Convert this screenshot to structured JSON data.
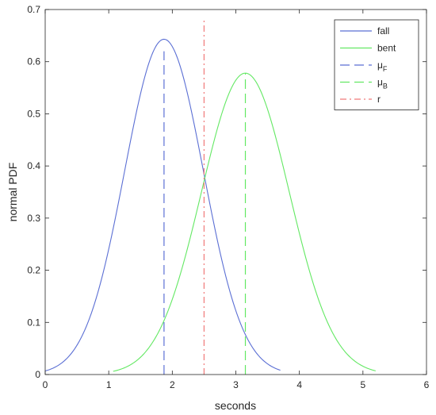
{
  "chart_data": {
    "type": "line",
    "xlabel": "seconds",
    "ylabel": "normal PDF",
    "xlim": [
      0,
      6
    ],
    "ylim": [
      0,
      0.7
    ],
    "xticks": [
      "0",
      "1",
      "2",
      "3",
      "4",
      "5",
      "6"
    ],
    "yticks": [
      "0",
      "0.1",
      "0.2",
      "0.3",
      "0.4",
      "0.5",
      "0.6",
      "0.7"
    ],
    "grid": false,
    "legend_position": "top-right",
    "series": [
      {
        "name": "fall",
        "kind": "gaussian",
        "mean": 1.87,
        "peak": 0.643,
        "x_range": [
          0,
          3.7
        ],
        "color": "#5b6fd4",
        "dash": "solid"
      },
      {
        "name": "bent",
        "kind": "gaussian",
        "mean": 3.15,
        "peak": 0.578,
        "x_range": [
          1.07,
          5.2
        ],
        "color": "#63e863",
        "dash": "solid"
      },
      {
        "name": "μ",
        "subscript": "F",
        "kind": "vline",
        "x": 1.87,
        "y_range": [
          0,
          0.62
        ],
        "color": "#5b6fd4",
        "dash": "dashed"
      },
      {
        "name": "μ",
        "subscript": "B",
        "kind": "vline",
        "x": 3.15,
        "y_range": [
          0,
          0.578
        ],
        "color": "#63e863",
        "dash": "dashed"
      },
      {
        "name": "r",
        "kind": "vline",
        "x": 2.5,
        "y_range": [
          0,
          0.68
        ],
        "color": "#f07a7a",
        "dash": "dashdot"
      }
    ]
  }
}
